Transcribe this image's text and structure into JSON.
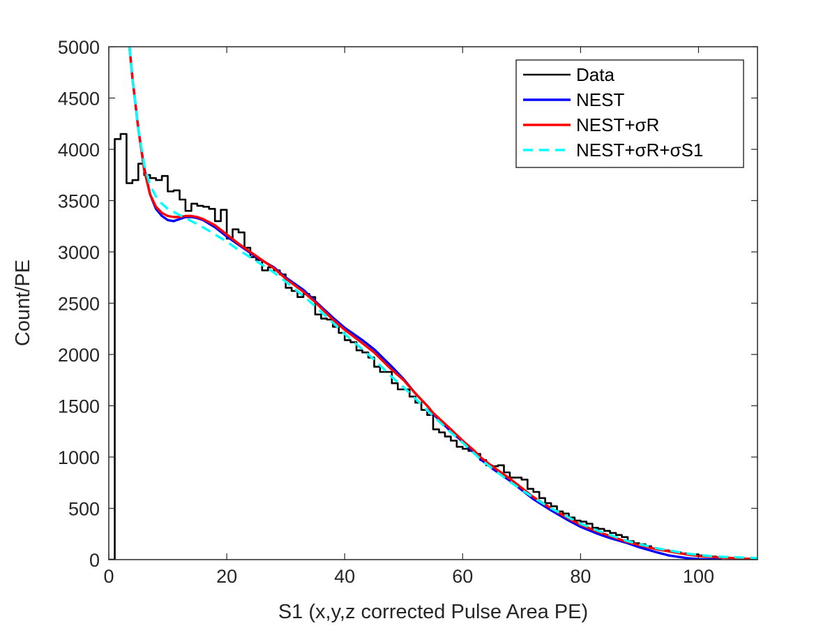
{
  "chart_data": {
    "type": "line",
    "xlabel": "S1 (x,y,z corrected Pulse Area PE)",
    "ylabel": "Count/PE",
    "xlim": [
      0,
      110
    ],
    "ylim": [
      0,
      5000
    ],
    "xticks": [
      0,
      20,
      40,
      60,
      80,
      100
    ],
    "yticks": [
      0,
      500,
      1000,
      1500,
      2000,
      2500,
      3000,
      3500,
      4000,
      4500,
      5000
    ],
    "grid": false,
    "legend_position": "top-right",
    "series": [
      {
        "name": "Data",
        "style": "stairs",
        "color": "#000000",
        "x": [
          0,
          1,
          2,
          3,
          4,
          5,
          6,
          7,
          8,
          9,
          10,
          11,
          12,
          13,
          14,
          15,
          16,
          17,
          18,
          19,
          20,
          21,
          22,
          23,
          24,
          25,
          26,
          27,
          28,
          29,
          30,
          31,
          32,
          33,
          34,
          35,
          36,
          37,
          38,
          39,
          40,
          41,
          42,
          43,
          44,
          45,
          46,
          47,
          48,
          49,
          50,
          51,
          52,
          53,
          54,
          55,
          56,
          57,
          58,
          59,
          60,
          61,
          62,
          63,
          64,
          65,
          66,
          67,
          68,
          69,
          70,
          71,
          72,
          73,
          74,
          75,
          76,
          77,
          78,
          79,
          80,
          81,
          82,
          83,
          84,
          85,
          86,
          87,
          88,
          89,
          90,
          91,
          92,
          93,
          94,
          95,
          96,
          97,
          98,
          99,
          100,
          101,
          102,
          103,
          104,
          105,
          106,
          107,
          108,
          109,
          110
        ],
        "y": [
          0,
          4100,
          4150,
          3670,
          3700,
          3860,
          3750,
          3720,
          3700,
          3740,
          3590,
          3600,
          3510,
          3400,
          3470,
          3450,
          3440,
          3420,
          3300,
          3410,
          3130,
          3220,
          3190,
          3040,
          2950,
          2920,
          2820,
          2850,
          2820,
          2780,
          2650,
          2620,
          2560,
          2590,
          2560,
          2390,
          2350,
          2340,
          2270,
          2210,
          2140,
          2120,
          2040,
          2020,
          1970,
          1880,
          1830,
          1830,
          1720,
          1660,
          1660,
          1590,
          1530,
          1460,
          1410,
          1270,
          1240,
          1200,
          1160,
          1100,
          1080,
          1060,
          1030,
          970,
          920,
          910,
          920,
          850,
          800,
          800,
          780,
          690,
          660,
          600,
          550,
          520,
          470,
          450,
          410,
          380,
          370,
          350,
          310,
          300,
          280,
          260,
          240,
          220,
          180,
          160,
          150,
          130,
          110,
          100,
          90,
          80,
          70,
          60,
          55,
          50,
          40,
          35,
          30,
          25,
          20,
          15,
          10,
          10,
          5,
          5,
          0
        ]
      },
      {
        "name": "NEST",
        "style": "line",
        "color": "#0000ff",
        "x": [
          3.5,
          4,
          5,
          6,
          7,
          8,
          9,
          10,
          11,
          12,
          13,
          14,
          15,
          16,
          18,
          20,
          22,
          25,
          28,
          30,
          33,
          35,
          38,
          40,
          43,
          45,
          48,
          50,
          52,
          54,
          55,
          58,
          60,
          62,
          63,
          65,
          68,
          70,
          72,
          75,
          78,
          80,
          83,
          85,
          88,
          90,
          93,
          95,
          98,
          100,
          104
        ],
        "y": [
          5000,
          4700,
          4200,
          3820,
          3560,
          3420,
          3350,
          3310,
          3300,
          3320,
          3340,
          3340,
          3330,
          3310,
          3240,
          3150,
          3070,
          2950,
          2850,
          2750,
          2630,
          2520,
          2360,
          2260,
          2140,
          2050,
          1880,
          1760,
          1620,
          1500,
          1420,
          1250,
          1150,
          1040,
          980,
          890,
          770,
          680,
          590,
          480,
          380,
          320,
          250,
          210,
          160,
          120,
          70,
          40,
          15,
          5,
          0
        ]
      },
      {
        "name": "NEST+σR",
        "style": "line",
        "color": "#ff0000",
        "x": [
          3.5,
          4,
          5,
          6,
          7,
          8,
          9,
          10,
          11,
          12,
          13,
          14,
          15,
          16,
          18,
          20,
          22,
          25,
          28,
          30,
          33,
          35,
          38,
          40,
          43,
          45,
          48,
          50,
          52,
          54,
          55,
          58,
          60,
          62,
          63,
          65,
          68,
          70,
          72,
          75,
          78,
          80,
          83,
          85,
          88,
          90,
          93,
          95,
          98,
          100,
          104,
          107,
          110
        ],
        "y": [
          5000,
          4700,
          4200,
          3800,
          3560,
          3440,
          3380,
          3350,
          3340,
          3340,
          3350,
          3350,
          3340,
          3320,
          3260,
          3170,
          3080,
          2960,
          2840,
          2740,
          2610,
          2510,
          2340,
          2240,
          2110,
          2020,
          1850,
          1750,
          1620,
          1500,
          1430,
          1270,
          1160,
          1060,
          1000,
          910,
          790,
          700,
          610,
          500,
          400,
          340,
          270,
          230,
          170,
          140,
          100,
          80,
          50,
          35,
          20,
          12,
          5
        ]
      },
      {
        "name": "NEST+σR+σS1",
        "style": "dashed",
        "color": "#00ffff",
        "x": [
          3.5,
          4,
          5,
          6,
          7,
          8,
          9,
          10,
          12,
          14,
          16,
          18,
          20,
          22,
          25,
          28,
          30,
          33,
          35,
          38,
          40,
          43,
          45,
          48,
          50,
          52,
          55,
          58,
          60,
          63,
          65,
          68,
          70,
          73,
          75,
          78,
          80,
          83,
          85,
          88,
          90,
          93,
          95,
          98,
          100,
          103,
          105,
          108,
          110
        ],
        "y": [
          5000,
          4700,
          4200,
          3850,
          3650,
          3540,
          3470,
          3420,
          3360,
          3300,
          3240,
          3170,
          3100,
          3020,
          2910,
          2800,
          2710,
          2570,
          2470,
          2310,
          2200,
          2050,
          1950,
          1780,
          1680,
          1570,
          1400,
          1240,
          1140,
          980,
          890,
          760,
          680,
          570,
          500,
          410,
          350,
          280,
          240,
          180,
          150,
          110,
          90,
          60,
          45,
          30,
          25,
          20,
          15
        ]
      }
    ]
  }
}
